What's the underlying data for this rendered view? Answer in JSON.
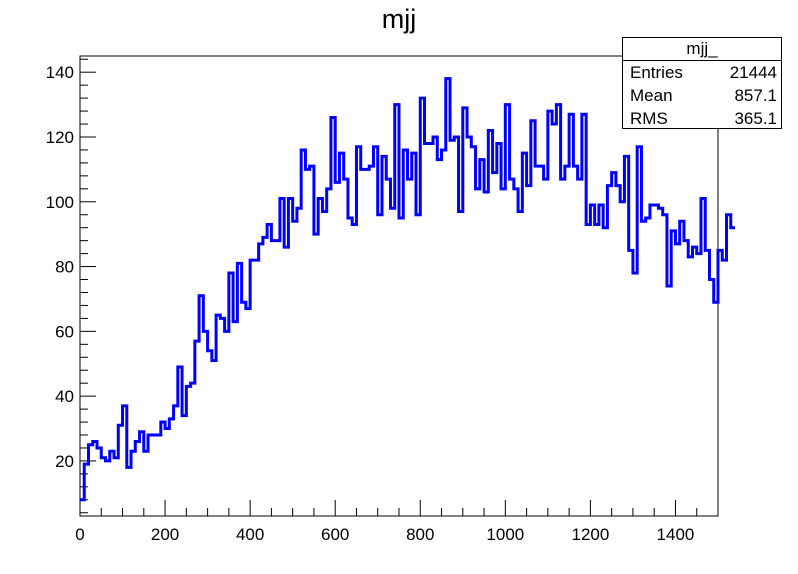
{
  "chart_data": {
    "type": "histogram",
    "title": "mjj",
    "xlim": [
      0,
      1500
    ],
    "ylim": [
      3,
      145
    ],
    "bin_width": 10,
    "x_ticks": [
      0,
      200,
      400,
      600,
      800,
      1000,
      1200,
      1400
    ],
    "y_ticks": [
      20,
      40,
      60,
      80,
      100,
      120,
      140
    ],
    "line_color": "#0000ff",
    "stats_box": {
      "name": "mjj_",
      "entries_label": "Entries",
      "entries": "21444",
      "mean_label": "Mean",
      "mean": "857.1",
      "rms_label": "RMS",
      "rms": "365.1"
    },
    "values": [
      8,
      19,
      25,
      26,
      24,
      21,
      20,
      23,
      21,
      31,
      37,
      18,
      23,
      26,
      29,
      23,
      28,
      28,
      28,
      32,
      30,
      33,
      37,
      49,
      34,
      43,
      44,
      57,
      71,
      60,
      54,
      51,
      65,
      64,
      60,
      78,
      63,
      81,
      69,
      67,
      82,
      82,
      87,
      89,
      93,
      88,
      88,
      101,
      86,
      101,
      94,
      98,
      116,
      110,
      111,
      90,
      101,
      97,
      104,
      126,
      106,
      115,
      107,
      95,
      93,
      117,
      110,
      110,
      111,
      117,
      96,
      114,
      107,
      98,
      130,
      95,
      116,
      107,
      115,
      96,
      132,
      118,
      118,
      120,
      113,
      116,
      138,
      119,
      120,
      97,
      129,
      120,
      117,
      104,
      113,
      103,
      122,
      109,
      118,
      104,
      130,
      107,
      104,
      97,
      115,
      105,
      125,
      111,
      111,
      107,
      128,
      124,
      130,
      107,
      111,
      127,
      111,
      107,
      127,
      93,
      99,
      93,
      99,
      92,
      105,
      109,
      105,
      100,
      114,
      85,
      78,
      117,
      94,
      95,
      99,
      99,
      98,
      96,
      74,
      91,
      87,
      94,
      88,
      83,
      86,
      84,
      101,
      85,
      76,
      69,
      85,
      82,
      96,
      92
    ]
  }
}
